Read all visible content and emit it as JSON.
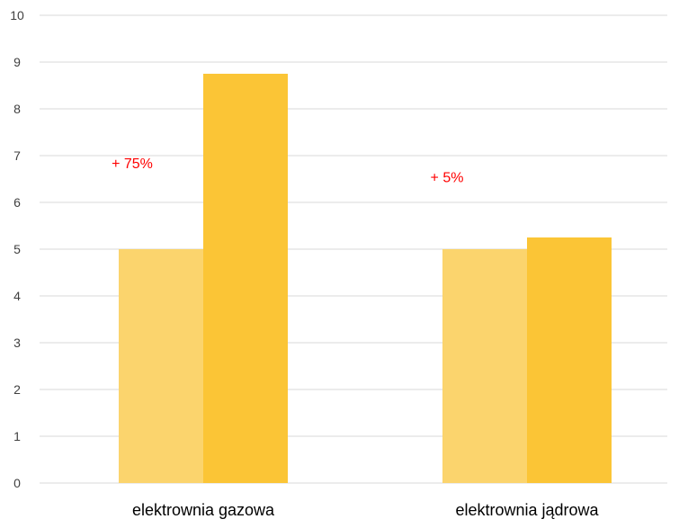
{
  "chart_data": {
    "type": "bar",
    "categories": [
      "elektrownia gazowa",
      "elektrownia jądrowa"
    ],
    "series": [
      {
        "values": [
          5.0,
          5.0
        ]
      },
      {
        "values": [
          8.75,
          5.25
        ]
      }
    ],
    "annotations": [
      "+ 75%",
      "+ 5%"
    ],
    "ylim": [
      0,
      10
    ],
    "yticks": [
      0,
      1,
      2,
      3,
      4,
      5,
      6,
      7,
      8,
      9,
      10
    ],
    "grid": true,
    "colors": {
      "series": [
        "#FBD46D",
        "#FBC536"
      ],
      "grid": "#D9D9D9",
      "tick_text": "#404040",
      "category_text": "#000000",
      "annotation": "#FF0000"
    }
  }
}
